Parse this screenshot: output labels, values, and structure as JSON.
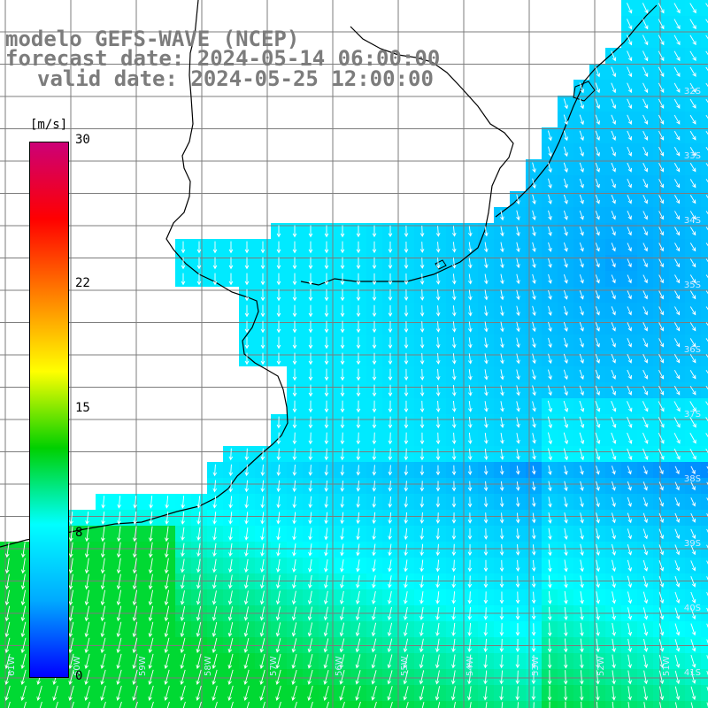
{
  "title": {
    "model": "modelo GEFS-WAVE (NCEP)",
    "forecast": "forecast date: 2024-05-14 06:00:00",
    "valid": "valid date: 2024-05-25 12:00:00"
  },
  "colorbar": {
    "units": "[m/s]",
    "ticks": [
      "30",
      "22",
      "15",
      "8",
      "0"
    ],
    "tick_values": [
      30,
      22,
      15,
      8,
      0
    ],
    "range": [
      0,
      30
    ],
    "colors": [
      "#0000ff",
      "#00aaff",
      "#00ffff",
      "#00d000",
      "#ffff00",
      "#ff8000",
      "#ff0000",
      "#cc0077"
    ]
  },
  "map": {
    "lat_labels": [
      "32S",
      "33S",
      "34S",
      "35S",
      "36S",
      "37S",
      "38S",
      "39S",
      "40S",
      "41S"
    ],
    "lon_labels": [
      "61W",
      "60W",
      "59W",
      "58W",
      "57W",
      "56W",
      "55W",
      "54W",
      "53W",
      "52W",
      "51W"
    ],
    "field": "wind speed and direction",
    "colors": {
      "land": "#ffffff",
      "grid": "#7c7c7c",
      "coast": "#000000",
      "arrows": "#ffffff"
    }
  }
}
